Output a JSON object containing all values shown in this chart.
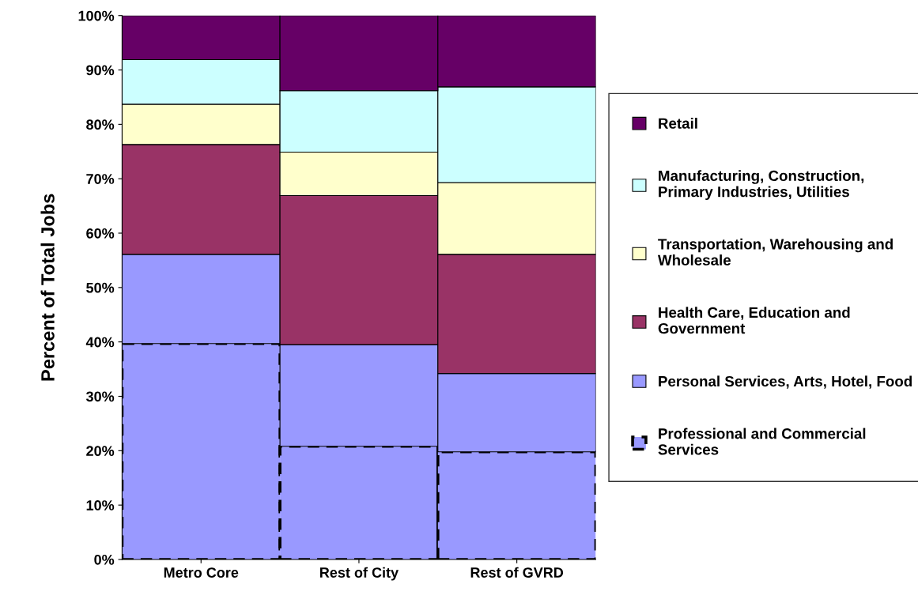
{
  "chart_data": {
    "type": "bar",
    "stacked": true,
    "ylabel": "Percent of Total Jobs",
    "categories": [
      "Metro Core",
      "Rest of City",
      "Rest of GVRD"
    ],
    "series": [
      {
        "name": "Professional and Commercial Services",
        "color": "#9999ff",
        "line_style": "dashed",
        "values": [
          39.7,
          20.8,
          19.8
        ]
      },
      {
        "name": "Personal Services, Arts, Hotel, Food",
        "color": "#9999ff",
        "values": [
          16.4,
          18.7,
          14.4
        ]
      },
      {
        "name": "Health Care, Education and Government",
        "color": "#993366",
        "values": [
          20.2,
          27.4,
          21.9
        ]
      },
      {
        "name": "Transportation, Warehousing and Wholesale",
        "color": "#ffffcc",
        "values": [
          7.4,
          8.0,
          13.2
        ]
      },
      {
        "name": "Manufacturing, Construction, Primary Industries, Utilities",
        "color": "#ccffff",
        "values": [
          8.2,
          11.3,
          17.6
        ]
      },
      {
        "name": "Retail",
        "color": "#660066",
        "values": [
          8.1,
          13.8,
          13.1
        ]
      }
    ],
    "ylim": [
      0,
      100
    ],
    "yticks": [
      {
        "value": 0,
        "label": "0%"
      },
      {
        "value": 10,
        "label": "10%"
      },
      {
        "value": 20,
        "label": "20%"
      },
      {
        "value": 30,
        "label": "30%"
      },
      {
        "value": 40,
        "label": "40%"
      },
      {
        "value": 50,
        "label": "50%"
      },
      {
        "value": 60,
        "label": "60%"
      },
      {
        "value": 70,
        "label": "70%"
      },
      {
        "value": 80,
        "label": "80%"
      },
      {
        "value": 90,
        "label": "90%"
      },
      {
        "value": 100,
        "label": "100%"
      }
    ],
    "grid": false,
    "legend": "right"
  }
}
